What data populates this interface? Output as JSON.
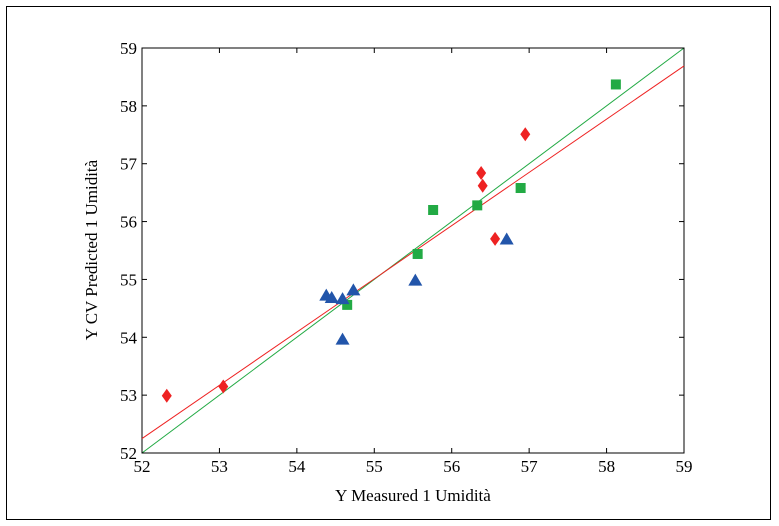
{
  "chart_data": {
    "type": "scatter",
    "xlabel": "Y Measured 1 Umidità",
    "ylabel": "Y CV Predicted 1 Umidità",
    "xlim": [
      52,
      59
    ],
    "ylim": [
      52,
      59
    ],
    "x_ticks": [
      "52",
      "53",
      "54",
      "55",
      "56",
      "57",
      "58",
      "59"
    ],
    "y_ticks": [
      "52",
      "53",
      "54",
      "55",
      "56",
      "57",
      "58",
      "59"
    ],
    "grid": false,
    "colors": {
      "red": "#ee2222",
      "green": "#22aa44",
      "blue": "#2255aa"
    },
    "series": [
      {
        "marker": "diamond",
        "color": "#ee2222",
        "points": [
          [
            52.32,
            52.99
          ],
          [
            53.05,
            53.15
          ],
          [
            56.38,
            56.84
          ],
          [
            56.4,
            56.62
          ],
          [
            56.56,
            55.7
          ],
          [
            56.95,
            57.51
          ]
        ]
      },
      {
        "marker": "square",
        "color": "#22aa44",
        "points": [
          [
            54.65,
            54.56
          ],
          [
            55.56,
            55.44
          ],
          [
            55.76,
            56.2
          ],
          [
            56.33,
            56.28
          ],
          [
            56.89,
            56.58
          ],
          [
            58.12,
            58.37
          ]
        ]
      },
      {
        "marker": "triangle",
        "color": "#2255aa",
        "points": [
          [
            54.38,
            54.72
          ],
          [
            54.45,
            54.68
          ],
          [
            54.59,
            54.66
          ],
          [
            54.73,
            54.81
          ],
          [
            54.59,
            53.96
          ],
          [
            55.53,
            54.98
          ],
          [
            56.71,
            55.69
          ]
        ]
      }
    ],
    "lines": [
      {
        "color": "#22aa44",
        "x": [
          52,
          59
        ],
        "y": [
          52.0,
          59.0
        ]
      },
      {
        "color": "#ee2222",
        "x": [
          52,
          59
        ],
        "y": [
          52.25,
          58.69
        ]
      }
    ]
  }
}
